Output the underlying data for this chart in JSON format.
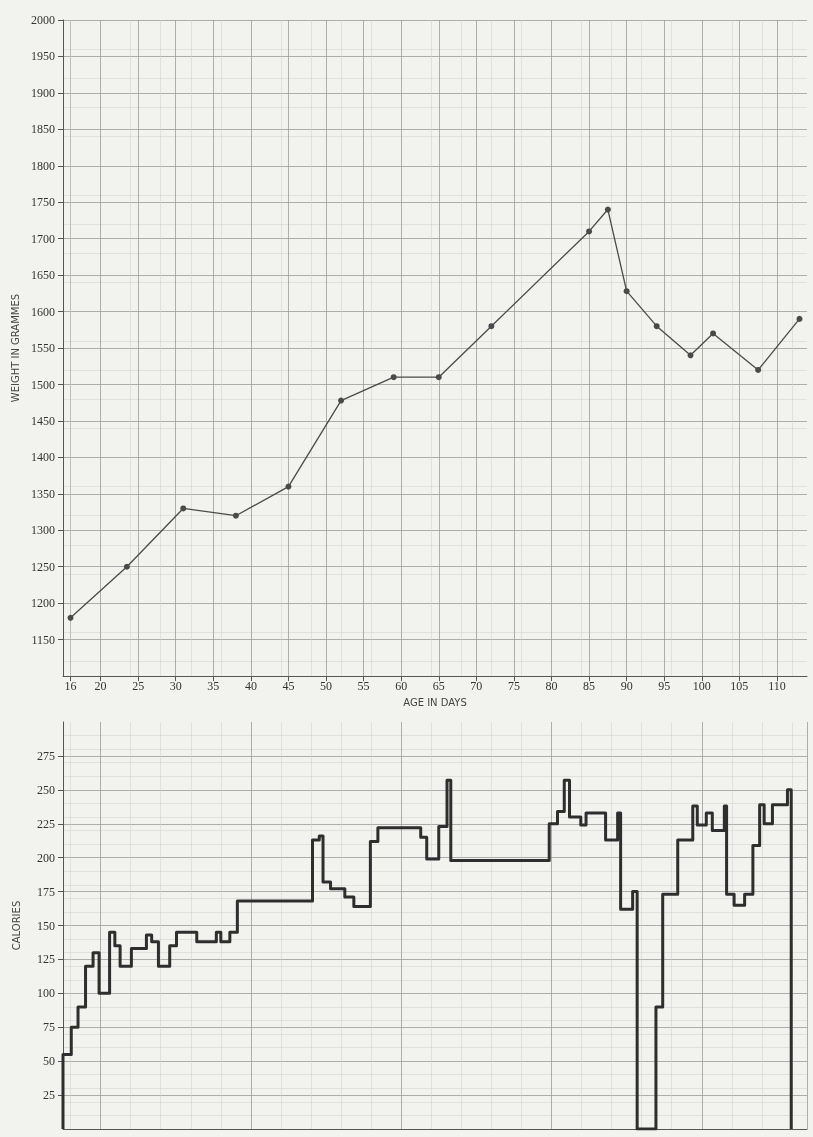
{
  "chart_data": [
    {
      "type": "line",
      "xlabel": "AGE IN DAYS",
      "ylabel": "WEIGHT IN GRAMMES",
      "color": "#4a4a4a",
      "marker": "circle",
      "line_style": "solid",
      "grid": true,
      "x": [
        16,
        23.5,
        31,
        38,
        45,
        52,
        59,
        65,
        72,
        85,
        87.5,
        90,
        94,
        98.5,
        101.5,
        107.5,
        113
      ],
      "values": [
        1180,
        1250,
        1330,
        1320,
        1360,
        1478,
        1510,
        1510,
        1580,
        1710,
        1740,
        1628,
        1580,
        1540,
        1570,
        1520,
        1590
      ],
      "xlim": [
        15,
        114
      ],
      "xticks": [
        16,
        20,
        25,
        30,
        35,
        40,
        45,
        50,
        55,
        60,
        65,
        70,
        75,
        80,
        85,
        90,
        95,
        100,
        105,
        110
      ],
      "ylim": [
        1100,
        2000
      ],
      "yticks": [
        1150,
        1200,
        1250,
        1300,
        1350,
        1400,
        1450,
        1500,
        1550,
        1600,
        1650,
        1700,
        1750,
        1800,
        1850,
        1900,
        1950,
        2000
      ]
    },
    {
      "type": "step",
      "ylabel": "CALORIES",
      "color": "#2e2e2e",
      "grid": true,
      "tick_labels": "y",
      "x": [
        15,
        15,
        16.1,
        17,
        18,
        19,
        19.8,
        21.2,
        21.9,
        22.6,
        24.1,
        26.1,
        26.8,
        27.7,
        29.2,
        30.1,
        32.8,
        35.4,
        36,
        37.2,
        38.2,
        48.2,
        49.1,
        49.6,
        50.6,
        52.5,
        53.7,
        55.9,
        56.9,
        62.6,
        63.4,
        65,
        66.1,
        66.6,
        79.7,
        80.8,
        81.7,
        82.4,
        83.9,
        84.6,
        87.2,
        88.8,
        89.2,
        90.8,
        91.4,
        93.9,
        94.8,
        96.8,
        98.8,
        99.4,
        100.6,
        101.4,
        103,
        103.3,
        104.3,
        105.7,
        106.8,
        107.7,
        108.3,
        109.4,
        111.4,
        111.9
      ],
      "values": [
        0,
        55,
        75,
        90,
        120,
        130,
        100,
        145,
        135,
        120,
        133,
        143,
        138,
        120,
        135,
        145,
        138,
        145,
        138,
        145,
        168,
        213,
        216,
        182,
        177,
        171,
        164,
        212,
        222,
        215,
        199,
        223,
        257,
        198,
        225,
        234,
        257,
        230,
        224,
        233,
        213,
        233,
        162,
        175,
        0,
        90,
        173,
        213,
        238,
        224,
        233,
        220,
        238,
        173,
        165,
        173,
        209,
        239,
        225,
        239,
        250,
        0
      ],
      "xlim": [
        15,
        114
      ],
      "ylim": [
        0,
        300
      ],
      "yticks": [
        25,
        50,
        75,
        100,
        125,
        150,
        175,
        200,
        225,
        250,
        275
      ]
    }
  ]
}
